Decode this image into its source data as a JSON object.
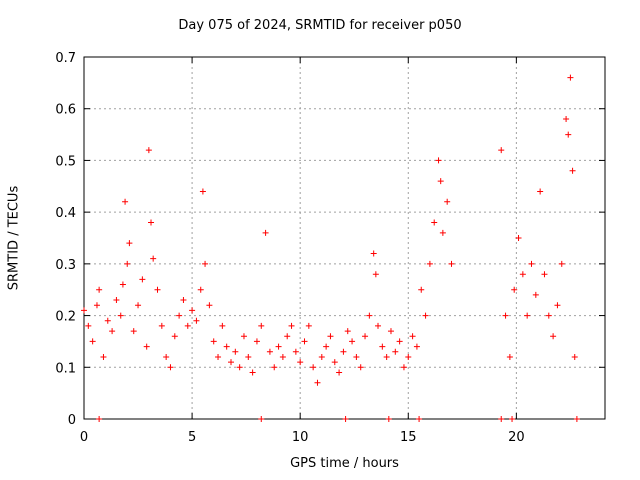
{
  "chart_data": {
    "type": "scatter",
    "title": "Day 075 of 2024, SRMTID for receiver p050",
    "xlabel": "GPS time / hours",
    "ylabel": "SRMTID / TECUs",
    "xlim": [
      0,
      24.1
    ],
    "ylim": [
      0,
      0.7
    ],
    "xticks": [
      0,
      5,
      10,
      15,
      20
    ],
    "yticks": [
      0,
      0.1,
      0.2,
      0.3,
      0.4,
      0.5,
      0.6,
      0.7
    ],
    "xtick_labels": [
      "0",
      "5",
      "10",
      "15",
      "20"
    ],
    "ytick_labels": [
      "0",
      "0.1",
      "0.2",
      "0.3",
      "0.4",
      "0.5",
      "0.6",
      "0.7"
    ],
    "grid": true,
    "marker": "plus",
    "color": "#ff0000",
    "series": [
      {
        "name": "SRMTID",
        "x": [
          0.0,
          0.2,
          0.4,
          0.6,
          0.7,
          0.9,
          1.1,
          1.3,
          1.5,
          1.7,
          1.8,
          1.9,
          2.0,
          2.1,
          2.3,
          2.5,
          2.7,
          2.9,
          3.0,
          3.1,
          3.2,
          3.4,
          3.6,
          3.8,
          4.0,
          4.2,
          4.4,
          4.6,
          4.8,
          5.0,
          5.2,
          5.4,
          5.5,
          5.6,
          5.8,
          6.0,
          6.2,
          6.4,
          6.6,
          6.8,
          7.0,
          7.2,
          7.4,
          7.6,
          7.8,
          8.0,
          8.2,
          8.4,
          8.6,
          8.8,
          9.0,
          9.2,
          9.4,
          9.6,
          9.8,
          10.0,
          10.2,
          10.4,
          10.6,
          10.8,
          11.0,
          11.2,
          11.4,
          11.6,
          11.8,
          12.0,
          12.2,
          12.4,
          12.6,
          12.8,
          13.0,
          13.2,
          13.4,
          13.5,
          13.6,
          13.8,
          14.0,
          14.2,
          14.4,
          14.6,
          14.8,
          15.0,
          15.2,
          15.4,
          15.6,
          15.8,
          16.0,
          16.2,
          16.4,
          16.5,
          16.6,
          16.8,
          17.0,
          19.3,
          19.5,
          19.7,
          19.9,
          20.1,
          20.3,
          20.5,
          20.7,
          20.9,
          21.1,
          21.3,
          21.5,
          21.7,
          21.9,
          22.1,
          22.3,
          22.4,
          22.5,
          22.6,
          22.7
        ],
        "y": [
          0.21,
          0.18,
          0.15,
          0.22,
          0.25,
          0.12,
          0.19,
          0.17,
          0.23,
          0.2,
          0.26,
          0.42,
          0.3,
          0.34,
          0.17,
          0.22,
          0.27,
          0.14,
          0.52,
          0.38,
          0.31,
          0.25,
          0.18,
          0.12,
          0.1,
          0.16,
          0.2,
          0.23,
          0.18,
          0.21,
          0.19,
          0.25,
          0.44,
          0.3,
          0.22,
          0.15,
          0.12,
          0.18,
          0.14,
          0.11,
          0.13,
          0.1,
          0.16,
          0.12,
          0.09,
          0.15,
          0.18,
          0.36,
          0.13,
          0.1,
          0.14,
          0.12,
          0.16,
          0.18,
          0.13,
          0.11,
          0.15,
          0.18,
          0.1,
          0.07,
          0.12,
          0.14,
          0.16,
          0.11,
          0.09,
          0.13,
          0.17,
          0.15,
          0.12,
          0.1,
          0.16,
          0.2,
          0.32,
          0.28,
          0.18,
          0.14,
          0.12,
          0.17,
          0.13,
          0.15,
          0.1,
          0.12,
          0.16,
          0.14,
          0.25,
          0.2,
          0.3,
          0.38,
          0.5,
          0.46,
          0.36,
          0.42,
          0.3,
          0.52,
          0.2,
          0.12,
          0.25,
          0.35,
          0.28,
          0.2,
          0.3,
          0.24,
          0.44,
          0.28,
          0.2,
          0.16,
          0.22,
          0.3,
          0.58,
          0.55,
          0.66,
          0.48,
          0.12
        ],
        "zero_x": [
          0.7,
          8.2,
          12.1,
          14.1,
          15.5,
          19.3,
          19.8,
          22.8
        ]
      }
    ]
  }
}
